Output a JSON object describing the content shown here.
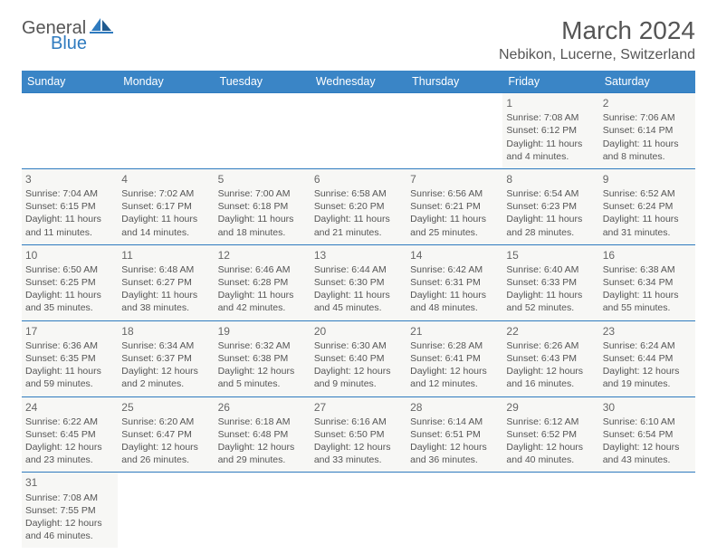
{
  "logo": {
    "word1": "General",
    "word2": "Blue"
  },
  "title": "March 2024",
  "location": "Nebikon, Lucerne, Switzerland",
  "colors": {
    "header_bg": "#3a85c6",
    "header_text": "#ffffff",
    "cell_bg": "#f7f7f5",
    "border": "#2f7bbf",
    "text": "#555555",
    "logo_blue": "#2f7bbf"
  },
  "weekdays": [
    "Sunday",
    "Monday",
    "Tuesday",
    "Wednesday",
    "Thursday",
    "Friday",
    "Saturday"
  ],
  "weeks": [
    [
      null,
      null,
      null,
      null,
      null,
      {
        "n": "1",
        "sr": "7:08 AM",
        "ss": "6:12 PM",
        "dh": "11",
        "dm": "4"
      },
      {
        "n": "2",
        "sr": "7:06 AM",
        "ss": "6:14 PM",
        "dh": "11",
        "dm": "8"
      }
    ],
    [
      {
        "n": "3",
        "sr": "7:04 AM",
        "ss": "6:15 PM",
        "dh": "11",
        "dm": "11"
      },
      {
        "n": "4",
        "sr": "7:02 AM",
        "ss": "6:17 PM",
        "dh": "11",
        "dm": "14"
      },
      {
        "n": "5",
        "sr": "7:00 AM",
        "ss": "6:18 PM",
        "dh": "11",
        "dm": "18"
      },
      {
        "n": "6",
        "sr": "6:58 AM",
        "ss": "6:20 PM",
        "dh": "11",
        "dm": "21"
      },
      {
        "n": "7",
        "sr": "6:56 AM",
        "ss": "6:21 PM",
        "dh": "11",
        "dm": "25"
      },
      {
        "n": "8",
        "sr": "6:54 AM",
        "ss": "6:23 PM",
        "dh": "11",
        "dm": "28"
      },
      {
        "n": "9",
        "sr": "6:52 AM",
        "ss": "6:24 PM",
        "dh": "11",
        "dm": "31"
      }
    ],
    [
      {
        "n": "10",
        "sr": "6:50 AM",
        "ss": "6:25 PM",
        "dh": "11",
        "dm": "35"
      },
      {
        "n": "11",
        "sr": "6:48 AM",
        "ss": "6:27 PM",
        "dh": "11",
        "dm": "38"
      },
      {
        "n": "12",
        "sr": "6:46 AM",
        "ss": "6:28 PM",
        "dh": "11",
        "dm": "42"
      },
      {
        "n": "13",
        "sr": "6:44 AM",
        "ss": "6:30 PM",
        "dh": "11",
        "dm": "45"
      },
      {
        "n": "14",
        "sr": "6:42 AM",
        "ss": "6:31 PM",
        "dh": "11",
        "dm": "48"
      },
      {
        "n": "15",
        "sr": "6:40 AM",
        "ss": "6:33 PM",
        "dh": "11",
        "dm": "52"
      },
      {
        "n": "16",
        "sr": "6:38 AM",
        "ss": "6:34 PM",
        "dh": "11",
        "dm": "55"
      }
    ],
    [
      {
        "n": "17",
        "sr": "6:36 AM",
        "ss": "6:35 PM",
        "dh": "11",
        "dm": "59"
      },
      {
        "n": "18",
        "sr": "6:34 AM",
        "ss": "6:37 PM",
        "dh": "12",
        "dm": "2"
      },
      {
        "n": "19",
        "sr": "6:32 AM",
        "ss": "6:38 PM",
        "dh": "12",
        "dm": "5"
      },
      {
        "n": "20",
        "sr": "6:30 AM",
        "ss": "6:40 PM",
        "dh": "12",
        "dm": "9"
      },
      {
        "n": "21",
        "sr": "6:28 AM",
        "ss": "6:41 PM",
        "dh": "12",
        "dm": "12"
      },
      {
        "n": "22",
        "sr": "6:26 AM",
        "ss": "6:43 PM",
        "dh": "12",
        "dm": "16"
      },
      {
        "n": "23",
        "sr": "6:24 AM",
        "ss": "6:44 PM",
        "dh": "12",
        "dm": "19"
      }
    ],
    [
      {
        "n": "24",
        "sr": "6:22 AM",
        "ss": "6:45 PM",
        "dh": "12",
        "dm": "23"
      },
      {
        "n": "25",
        "sr": "6:20 AM",
        "ss": "6:47 PM",
        "dh": "12",
        "dm": "26"
      },
      {
        "n": "26",
        "sr": "6:18 AM",
        "ss": "6:48 PM",
        "dh": "12",
        "dm": "29"
      },
      {
        "n": "27",
        "sr": "6:16 AM",
        "ss": "6:50 PM",
        "dh": "12",
        "dm": "33"
      },
      {
        "n": "28",
        "sr": "6:14 AM",
        "ss": "6:51 PM",
        "dh": "12",
        "dm": "36"
      },
      {
        "n": "29",
        "sr": "6:12 AM",
        "ss": "6:52 PM",
        "dh": "12",
        "dm": "40"
      },
      {
        "n": "30",
        "sr": "6:10 AM",
        "ss": "6:54 PM",
        "dh": "12",
        "dm": "43"
      }
    ],
    [
      {
        "n": "31",
        "sr": "7:08 AM",
        "ss": "7:55 PM",
        "dh": "12",
        "dm": "46"
      },
      null,
      null,
      null,
      null,
      null,
      null
    ]
  ],
  "labels": {
    "sunrise": "Sunrise:",
    "sunset": "Sunset:",
    "daylight": "Daylight:",
    "hours": "hours",
    "and": "and",
    "minutes": "minutes."
  }
}
